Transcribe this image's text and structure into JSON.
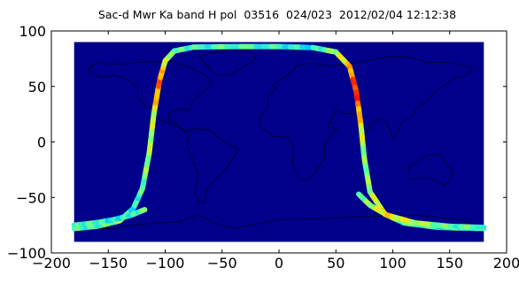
{
  "title": "Sac-d Mwr Ka band H pol  03516  024/023  2012/02/04 12:12:38",
  "colors": {
    "background": "#00008b",
    "coastline": "#000000",
    "colormap": [
      "#0000c8",
      "#0064ff",
      "#00c8ff",
      "#40ffb8",
      "#a8ff50",
      "#ffe000",
      "#ff8000",
      "#ff1000"
    ]
  },
  "chart_data": {
    "type": "map",
    "title": "Sac-d Mwr Ka band H pol  03516  024/023  2012/02/04 12:12:38",
    "xlim": [
      -200,
      200
    ],
    "ylim": [
      -100,
      100
    ],
    "map_extent": {
      "lon": [
        -180,
        180
      ],
      "lat": [
        -90,
        90
      ]
    },
    "x_ticks": [
      -200,
      -150,
      -100,
      -50,
      0,
      50,
      100,
      150,
      200
    ],
    "y_ticks": [
      100,
      50,
      0,
      -50,
      -100
    ],
    "x_tick_labels": [
      "−200",
      "−150",
      "−100",
      "−50",
      "0",
      "50",
      "100",
      "150",
      "200"
    ],
    "y_tick_labels": [
      "100",
      "50",
      "0",
      "−50",
      "−100"
    ],
    "swaths": [
      {
        "name": "",
        "points": [
          [
            -180,
            -78
          ],
          [
            -160,
            -76
          ],
          [
            -140,
            -71
          ],
          [
            -128,
            -60
          ],
          [
            -120,
            -42
          ],
          [
            -114,
            -10
          ],
          [
            -110,
            25
          ],
          [
            -105,
            55
          ],
          [
            -100,
            73
          ],
          [
            -92,
            82
          ],
          [
            -75,
            85.5
          ],
          [
            -40,
            86
          ],
          [
            0,
            86
          ],
          [
            30,
            85
          ],
          [
            50,
            81
          ],
          [
            62,
            68
          ],
          [
            68,
            45
          ],
          [
            72,
            15
          ],
          [
            75,
            -15
          ],
          [
            80,
            -45
          ],
          [
            93,
            -65
          ],
          [
            110,
            -73
          ],
          [
            140,
            -77
          ],
          [
            180,
            -78
          ]
        ],
        "value_stops": [
          0.45,
          0.4,
          0.55,
          0.35,
          0.45,
          0.55,
          0.6,
          0.9,
          0.65,
          0.5,
          0.4,
          0.45,
          0.4,
          0.35,
          0.55,
          0.75,
          1.0,
          0.7,
          0.5,
          0.55,
          0.7,
          0.45,
          0.4,
          0.45
        ]
      },
      {
        "name": "",
        "points": [
          [
            -180,
            -75
          ],
          [
            -162,
            -73
          ],
          [
            -145,
            -70
          ],
          [
            -130,
            -66
          ],
          [
            -118,
            -61
          ]
        ],
        "value_stops": [
          0.4,
          0.45,
          0.35,
          0.4,
          0.45
        ]
      },
      {
        "name": "",
        "points": [
          [
            70,
            -47
          ],
          [
            80,
            -57
          ],
          [
            95,
            -66
          ],
          [
            120,
            -73
          ],
          [
            150,
            -76
          ],
          [
            180,
            -77
          ]
        ],
        "value_stops": [
          0.4,
          0.55,
          0.7,
          0.6,
          0.45,
          0.45
        ]
      }
    ],
    "grid": false
  }
}
